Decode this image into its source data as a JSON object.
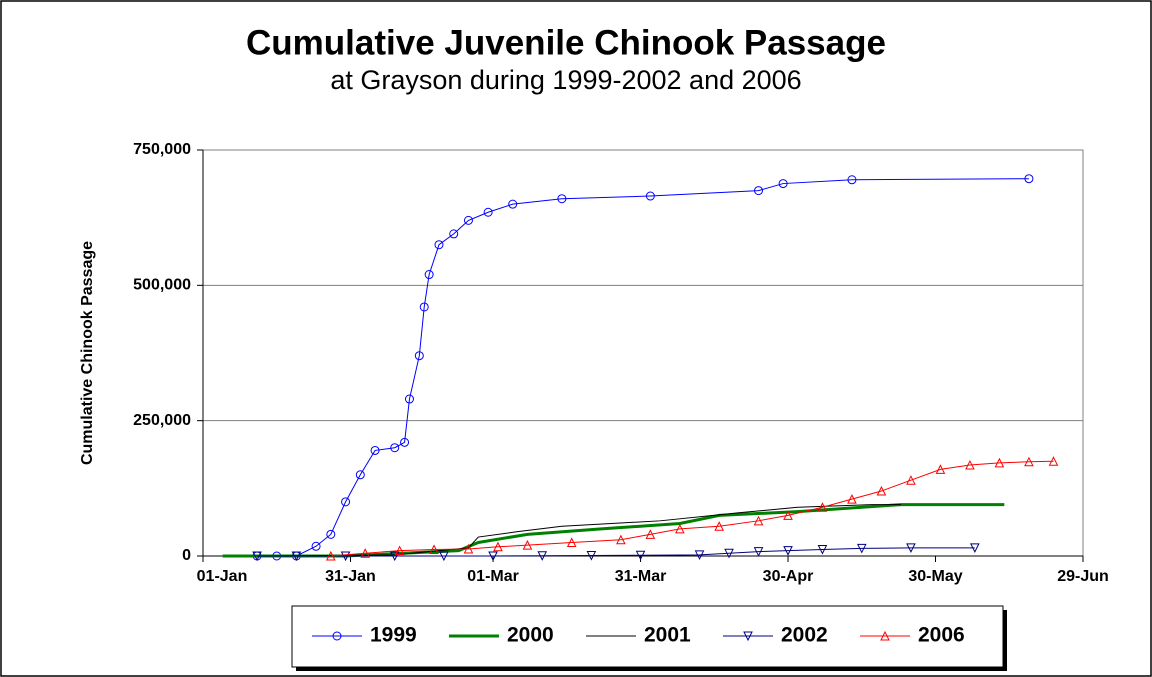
{
  "chart_data": {
    "type": "line",
    "title": "Cumulative Juvenile Chinook Passage",
    "subtitle": "at Grayson during 1999-2002 and 2006",
    "y_label": "Cumulative Chinook Passage",
    "xlim": [
      1,
      180
    ],
    "xticks": [
      {
        "value": 1,
        "label": "01-Jan"
      },
      {
        "value": 31,
        "label": "31-Jan"
      },
      {
        "value": 60,
        "label": "01-Mar"
      },
      {
        "value": 90,
        "label": "31-Mar"
      },
      {
        "value": 120,
        "label": "30-Apr"
      },
      {
        "value": 150,
        "label": "30-May"
      },
      {
        "value": 180,
        "label": "29-Jun"
      }
    ],
    "ylim": [
      0,
      750000
    ],
    "yticks": [
      0,
      {
        "value": 250000,
        "label": "250,000"
      },
      {
        "value": 500000,
        "label": "500,000"
      },
      {
        "value": 750000,
        "label": "750,000"
      }
    ],
    "grid": true,
    "legend": "bottom",
    "series": [
      {
        "name": "1999",
        "color": "#0000ff",
        "marker": "circle",
        "x": [
          12,
          16,
          20,
          24,
          27,
          30,
          33,
          36,
          40,
          42,
          43,
          45,
          46,
          47,
          49,
          52,
          55,
          59,
          64,
          74,
          92,
          114,
          119,
          133,
          169
        ],
        "values": [
          0,
          0,
          0,
          18000,
          40000,
          100000,
          150000,
          195000,
          200000,
          210000,
          290000,
          370000,
          460000,
          520000,
          575000,
          595000,
          620000,
          635000,
          650000,
          660000,
          665000,
          675000,
          688000,
          695000,
          697000
        ]
      },
      {
        "name": "2000",
        "color": "#008000",
        "marker": null,
        "x": [
          5,
          30,
          53,
          57,
          67,
          82,
          98,
          106,
          122,
          143,
          164
        ],
        "values": [
          0,
          0,
          10000,
          25000,
          40000,
          50000,
          60000,
          75000,
          82000,
          95000,
          95000
        ]
      },
      {
        "name": "2001",
        "color": "#000000",
        "marker": null,
        "x": [
          15,
          40,
          55,
          57,
          65,
          74,
          94,
          110,
          122,
          137,
          143
        ],
        "values": [
          0,
          2000,
          15000,
          35000,
          45000,
          55000,
          65000,
          80000,
          90000,
          95000,
          95000
        ]
      },
      {
        "name": "2002",
        "color": "#000080",
        "marker": "triangle-down",
        "x": [
          12,
          20,
          30,
          40,
          50,
          60,
          70,
          80,
          90,
          102,
          108,
          114,
          120,
          127,
          135,
          145,
          158
        ],
        "values": [
          0,
          0,
          0,
          0,
          0,
          0,
          500,
          1000,
          1500,
          2000,
          5000,
          8000,
          10000,
          12000,
          14000,
          15000,
          15000
        ]
      },
      {
        "name": "2006",
        "color": "#ff0000",
        "marker": "triangle-up",
        "x": [
          27,
          34,
          41,
          48,
          55,
          61,
          67,
          76,
          86,
          92,
          98,
          106,
          114,
          120,
          127,
          133,
          139,
          145,
          151,
          157,
          163,
          169,
          174
        ],
        "values": [
          0,
          5000,
          10000,
          12000,
          13000,
          17000,
          20000,
          25000,
          30000,
          40000,
          50000,
          55000,
          65000,
          75000,
          90000,
          105000,
          120000,
          140000,
          160000,
          168000,
          172000,
          174000,
          175000
        ]
      }
    ]
  }
}
